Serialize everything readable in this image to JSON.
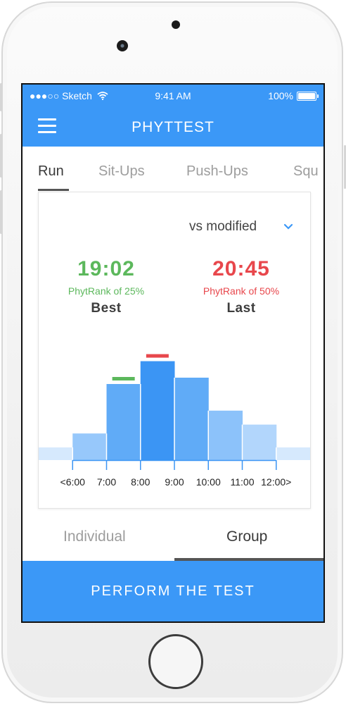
{
  "status_bar": {
    "carrier": "●●●○○ Sketch",
    "wifi_icon": "wifi-icon",
    "time": "9:41 AM",
    "battery": "100%"
  },
  "header": {
    "menu_icon": "hamburger-icon",
    "title": "PHYTTEST"
  },
  "tabs": [
    {
      "label": "Run",
      "active": true
    },
    {
      "label": "Sit-Ups",
      "active": false
    },
    {
      "label": "Push-Ups",
      "active": false
    },
    {
      "label": "Squ",
      "active": false
    }
  ],
  "comparison": {
    "selected": "vs modified",
    "icon": "chevron-down-icon"
  },
  "best": {
    "time": "19:02",
    "rank": "PhytRank of 25%",
    "label": "Best"
  },
  "last": {
    "time": "20:45",
    "rank": "PhytRank of 50%",
    "label": "Last"
  },
  "chart_data": {
    "type": "bar",
    "categories": [
      "<6:00",
      "6:00-7:00",
      "7:00-8:00",
      "8:00-9:00",
      "9:00-10:00",
      "10:00-11:00",
      "11:00-12:00",
      "12:00>"
    ],
    "tick_labels": [
      "<6:00",
      "7:00",
      "8:00",
      "9:00",
      "10:00",
      "11:00",
      "12:00>"
    ],
    "values": [
      10,
      21,
      60,
      78,
      65,
      39,
      28,
      10
    ],
    "ylim": [
      0,
      100
    ],
    "best_marker_bin": 2,
    "last_marker_bin": 3,
    "colors": {
      "bars": [
        "#d6e9fd",
        "#97c8fb",
        "#60abf7",
        "#3b95f4",
        "#60abf7",
        "#8cc2fa",
        "#b2d6fc",
        "#d6e9fd"
      ],
      "best_marker": "#5cb85c",
      "last_marker": "#e8474c"
    }
  },
  "view_toggle": {
    "individual": "Individual",
    "group": "Group",
    "active": "group"
  },
  "cta": {
    "label": "PERFORM THE TEST"
  },
  "colors": {
    "primary": "#3b98f7",
    "best": "#5cb85c",
    "last": "#e8474c"
  }
}
